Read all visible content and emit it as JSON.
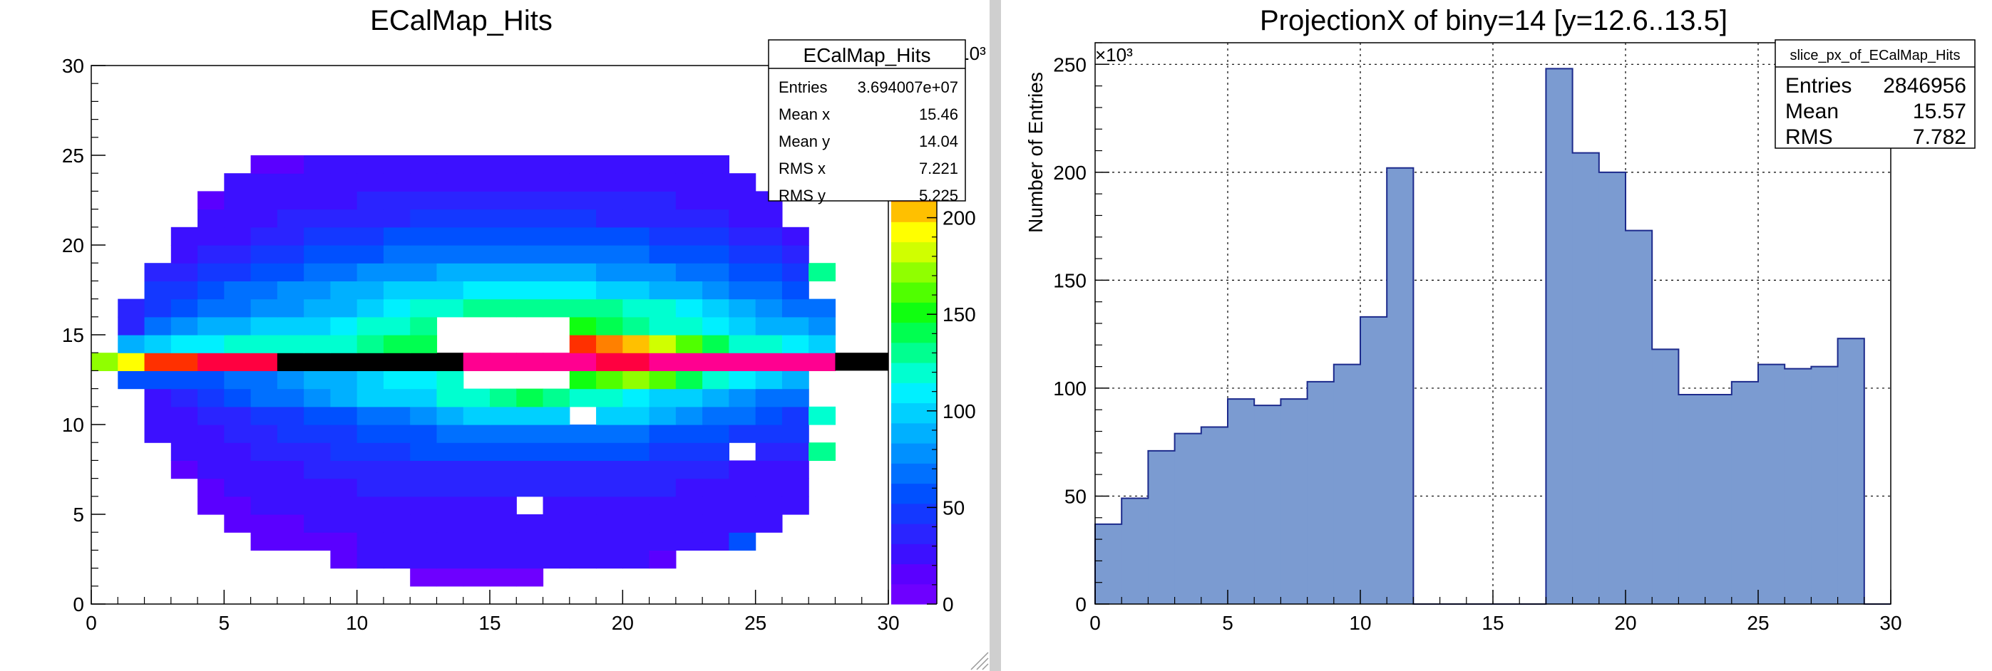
{
  "left": {
    "title": "ECalMap_Hits",
    "x_ticks": [
      "0",
      "5",
      "10",
      "15",
      "20",
      "25",
      "30"
    ],
    "y_ticks": [
      "0",
      "5",
      "10",
      "15",
      "20",
      "25",
      "30"
    ],
    "z_ticks": [
      "0",
      "50",
      "100",
      "150",
      "200"
    ],
    "z_exponent": "×10³",
    "stats": {
      "name": "ECalMap_Hits",
      "rows": [
        {
          "label": "Entries",
          "value": "3.694007e+07"
        },
        {
          "label": "Mean x",
          "value": "15.46"
        },
        {
          "label": "Mean y",
          "value": "14.04"
        },
        {
          "label": "RMS x",
          "value": "7.221"
        },
        {
          "label": "RMS y",
          "value": "5.225"
        }
      ]
    }
  },
  "right": {
    "title": "ProjectionX of biny=14 [y=12.6..13.5]",
    "ylabel": "Number of Entries",
    "y_exponent": "×10³",
    "x_ticks": [
      "0",
      "5",
      "10",
      "15",
      "20",
      "25",
      "30"
    ],
    "y_ticks": [
      "0",
      "50",
      "100",
      "150",
      "200",
      "250"
    ],
    "stats": {
      "name": "slice_px_of_ECalMap_Hits",
      "rows": [
        {
          "label": "Entries",
          "value": "2846956"
        },
        {
          "label": "Mean",
          "value": "15.57"
        },
        {
          "label": "RMS",
          "value": "7.782"
        }
      ]
    }
  },
  "chart_data": [
    {
      "type": "heatmap",
      "title": "ECalMap_Hits",
      "xlim": [
        0,
        30
      ],
      "ylim": [
        0,
        30
      ],
      "zlim": [
        0,
        250000
      ],
      "z_unit_multiplier": "10^3",
      "colormap": "ROOT rainbow (violet→blue→cyan→green→yellow→red→magenta)",
      "grid": false,
      "legend_position": "top-right",
      "stats_box": {
        "Entries": "3.694007e+07",
        "Mean x": "15.46",
        "Mean y": "14.04",
        "RMS x": "7.221",
        "RMS y": "5.225"
      },
      "rows_note": "rows listed from y=0 (bottom) upward; 30 columns x=0..29; value in thousands; 0 = empty",
      "rows": [
        [
          0,
          0,
          0,
          0,
          0,
          0,
          0,
          0,
          0,
          0,
          0,
          0,
          0,
          0,
          0,
          0,
          0,
          0,
          0,
          0,
          0,
          0,
          0,
          0,
          0,
          0,
          0,
          0,
          0,
          0
        ],
        [
          0,
          0,
          0,
          0,
          0,
          0,
          0,
          0,
          0,
          0,
          0,
          0,
          6,
          6,
          6,
          6,
          6,
          0,
          0,
          0,
          0,
          0,
          0,
          0,
          0,
          0,
          0,
          0,
          0,
          0
        ],
        [
          0,
          0,
          0,
          0,
          0,
          0,
          0,
          0,
          0,
          17,
          22,
          22,
          22,
          22,
          22,
          22,
          22,
          22,
          22,
          22,
          22,
          17,
          0,
          0,
          0,
          0,
          0,
          0,
          0,
          0
        ],
        [
          0,
          0,
          0,
          0,
          0,
          0,
          14,
          14,
          18,
          20,
          24,
          24,
          24,
          25,
          25,
          25,
          25,
          25,
          25,
          25,
          24,
          24,
          24,
          22,
          65,
          0,
          0,
          0,
          0,
          0
        ],
        [
          0,
          0,
          0,
          0,
          0,
          18,
          18,
          20,
          22,
          24,
          26,
          26,
          26,
          28,
          28,
          28,
          28,
          28,
          28,
          28,
          28,
          26,
          26,
          24,
          24,
          22,
          0,
          0,
          0,
          0
        ],
        [
          0,
          0,
          0,
          0,
          18,
          20,
          22,
          24,
          26,
          28,
          30,
          30,
          32,
          32,
          32,
          32,
          0,
          32,
          32,
          32,
          30,
          30,
          28,
          28,
          26,
          24,
          22,
          0,
          0,
          0
        ],
        [
          0,
          0,
          0,
          0,
          20,
          24,
          26,
          28,
          30,
          32,
          34,
          36,
          36,
          36,
          36,
          36,
          36,
          36,
          36,
          36,
          36,
          34,
          32,
          30,
          28,
          26,
          24,
          0,
          0,
          0
        ],
        [
          0,
          0,
          0,
          20,
          24,
          28,
          30,
          32,
          34,
          36,
          38,
          40,
          42,
          42,
          42,
          42,
          42,
          42,
          42,
          42,
          40,
          38,
          36,
          34,
          32,
          30,
          28,
          0,
          0,
          0
        ],
        [
          0,
          0,
          0,
          24,
          28,
          32,
          36,
          38,
          42,
          46,
          50,
          54,
          56,
          58,
          58,
          58,
          58,
          58,
          58,
          58,
          56,
          54,
          50,
          46,
          0,
          40,
          36,
          140,
          0,
          0
        ],
        [
          0,
          0,
          24,
          28,
          32,
          36,
          40,
          44,
          48,
          52,
          56,
          60,
          64,
          66,
          68,
          68,
          68,
          68,
          68,
          68,
          66,
          64,
          60,
          56,
          52,
          48,
          44,
          0,
          0,
          0
        ],
        [
          0,
          0,
          28,
          32,
          36,
          42,
          48,
          52,
          56,
          62,
          66,
          72,
          80,
          90,
          100,
          100,
          100,
          100,
          0,
          100,
          100,
          90,
          80,
          72,
          66,
          60,
          52,
          130,
          0,
          0
        ],
        [
          0,
          0,
          32,
          40,
          48,
          58,
          66,
          74,
          82,
          92,
          100,
          104,
          108,
          120,
          130,
          140,
          150,
          140,
          130,
          120,
          110,
          104,
          100,
          92,
          82,
          74,
          66,
          0,
          0,
          0
        ],
        [
          0,
          60,
          60,
          62,
          62,
          70,
          76,
          80,
          88,
          96,
          104,
          110,
          118,
          130,
          0,
          0,
          0,
          0,
          160,
          170,
          180,
          170,
          150,
          130,
          110,
          100,
          88,
          0,
          0,
          0
        ],
        [
          180,
          200,
          230,
          230,
          240,
          240,
          240,
          240,
          250,
          250,
          250,
          240,
          240,
          250,
          250,
          250,
          250,
          250,
          250,
          240,
          240,
          250,
          250,
          250,
          250,
          250,
          250,
          250,
          0,
          0
        ],
        [
          0,
          90,
          100,
          110,
          118,
          120,
          124,
          126,
          128,
          130,
          136,
          142,
          150,
          0,
          0,
          0,
          0,
          0,
          230,
          220,
          210,
          190,
          170,
          150,
          130,
          120,
          110,
          100,
          0,
          0
        ],
        [
          0,
          40,
          70,
          80,
          90,
          96,
          100,
          104,
          108,
          116,
          120,
          130,
          140,
          0,
          0,
          0,
          0,
          0,
          160,
          150,
          140,
          130,
          120,
          110,
          100,
          96,
          90,
          80,
          0,
          0
        ],
        [
          0,
          40,
          50,
          60,
          66,
          72,
          80,
          84,
          90,
          96,
          100,
          112,
          120,
          130,
          136,
          140,
          140,
          140,
          140,
          136,
          130,
          120,
          112,
          100,
          90,
          84,
          74,
          66,
          0,
          0
        ],
        [
          0,
          0,
          44,
          52,
          60,
          66,
          72,
          80,
          84,
          90,
          96,
          100,
          104,
          108,
          112,
          112,
          112,
          112,
          110,
          106,
          100,
          96,
          90,
          84,
          74,
          66,
          60,
          0,
          0,
          0
        ],
        [
          0,
          0,
          36,
          40,
          46,
          52,
          58,
          64,
          70,
          74,
          80,
          84,
          86,
          88,
          90,
          90,
          90,
          90,
          88,
          86,
          84,
          80,
          74,
          70,
          64,
          58,
          52,
          140,
          0,
          0
        ],
        [
          0,
          0,
          0,
          30,
          36,
          40,
          46,
          50,
          56,
          60,
          64,
          66,
          68,
          70,
          70,
          70,
          70,
          70,
          70,
          68,
          66,
          64,
          60,
          56,
          50,
          46,
          40,
          0,
          0,
          0
        ],
        [
          0,
          0,
          0,
          24,
          28,
          32,
          36,
          40,
          44,
          48,
          52,
          56,
          58,
          60,
          60,
          60,
          60,
          60,
          60,
          58,
          56,
          52,
          48,
          44,
          40,
          36,
          30,
          0,
          0,
          0
        ],
        [
          0,
          0,
          0,
          0,
          22,
          26,
          30,
          34,
          36,
          38,
          40,
          42,
          44,
          44,
          44,
          44,
          44,
          44,
          44,
          42,
          40,
          38,
          36,
          34,
          30,
          26,
          0,
          0,
          0,
          0
        ],
        [
          0,
          0,
          0,
          0,
          20,
          22,
          26,
          28,
          30,
          32,
          34,
          36,
          36,
          36,
          38,
          38,
          38,
          38,
          38,
          36,
          36,
          34,
          32,
          30,
          28,
          26,
          0,
          0,
          0,
          0
        ],
        [
          0,
          0,
          0,
          0,
          0,
          22,
          24,
          26,
          28,
          28,
          30,
          30,
          30,
          30,
          32,
          32,
          32,
          32,
          32,
          32,
          30,
          30,
          28,
          28,
          26,
          0,
          0,
          0,
          0,
          0
        ],
        [
          0,
          0,
          0,
          0,
          0,
          0,
          18,
          20,
          22,
          24,
          26,
          26,
          26,
          26,
          26,
          26,
          26,
          26,
          26,
          26,
          26,
          26,
          24,
          22,
          0,
          0,
          0,
          0,
          0,
          0
        ],
        [
          0,
          0,
          0,
          0,
          0,
          0,
          0,
          0,
          0,
          0,
          0,
          0,
          0,
          0,
          0,
          0,
          0,
          0,
          0,
          0,
          0,
          0,
          0,
          0,
          0,
          0,
          0,
          0,
          0,
          0
        ]
      ]
    },
    {
      "type": "bar",
      "title": "ProjectionX of biny=14 [y=12.6..13.5]",
      "xlabel": "",
      "ylabel": "Number of Entries",
      "xlim": [
        0,
        30
      ],
      "ylim": [
        0,
        260
      ],
      "y_unit_multiplier": "10^3",
      "grid": true,
      "legend_position": "top-right",
      "color": "#7b9bd1",
      "edge_color": "#1c2a8c",
      "stats_box": {
        "Entries": "2846956",
        "Mean": "15.57",
        "RMS": "7.782"
      },
      "bins": {
        "x_low": [
          0,
          1,
          2,
          3,
          4,
          5,
          6,
          7,
          8,
          9,
          10,
          11,
          12,
          13,
          14,
          15,
          16,
          17,
          18,
          19,
          20,
          21,
          22,
          23,
          24,
          25,
          26,
          27,
          28,
          29
        ],
        "values": [
          37,
          49,
          71,
          79,
          82,
          95,
          92,
          95,
          103,
          111,
          133,
          202,
          0,
          0,
          0,
          0,
          0,
          248,
          209,
          200,
          173,
          118,
          97,
          97,
          103,
          111,
          109,
          110,
          123,
          0
        ]
      }
    }
  ]
}
